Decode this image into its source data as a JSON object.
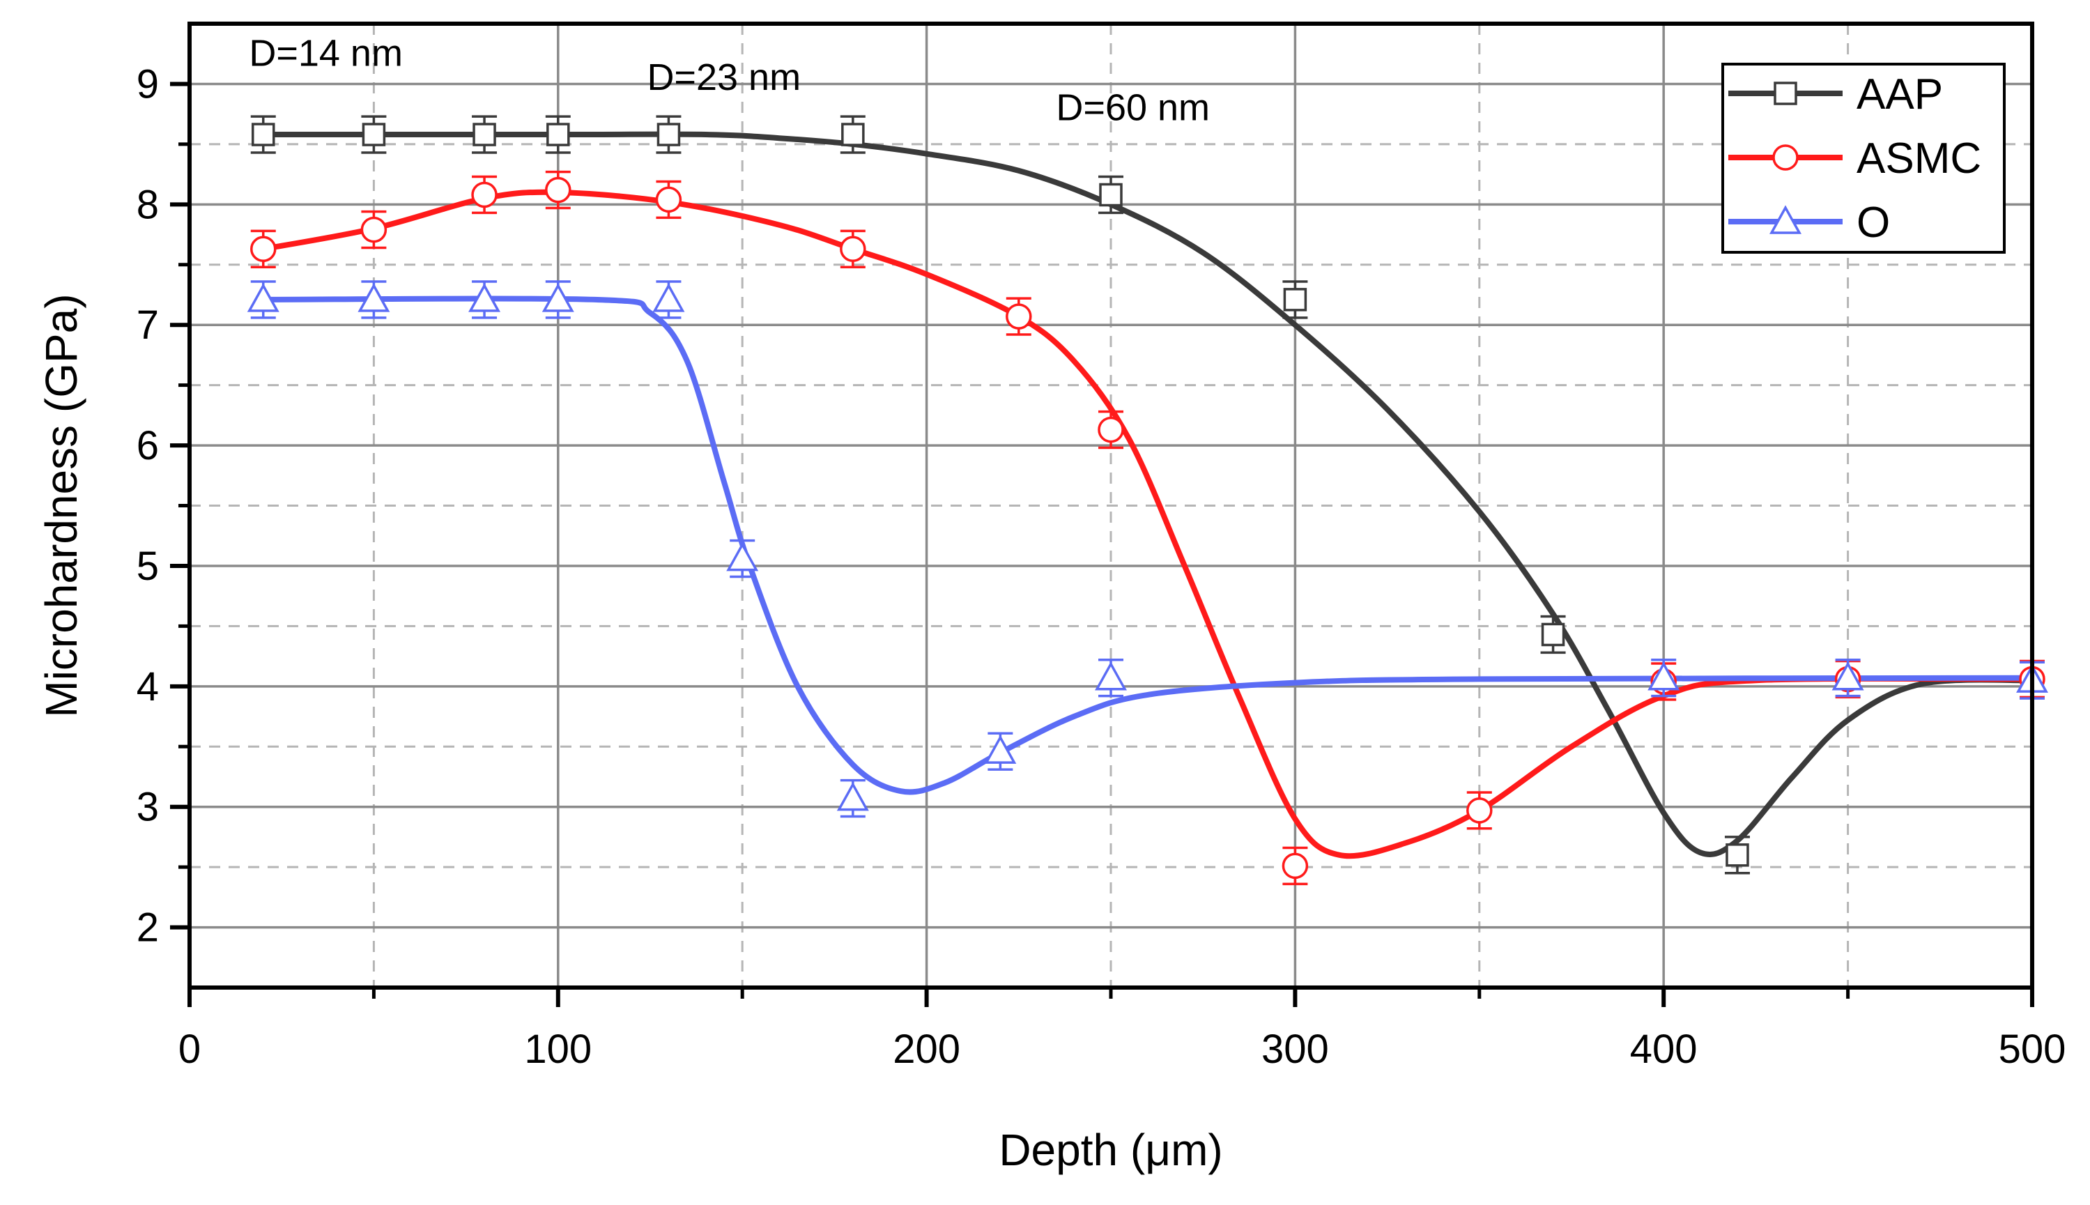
{
  "chart_data": {
    "type": "line",
    "xlabel": "Depth (μm)",
    "ylabel": "Microhardness (GPa)",
    "xlim": [
      0,
      500
    ],
    "ylim": [
      1.5,
      9.5
    ],
    "xticks": [
      0,
      100,
      200,
      300,
      400,
      500
    ],
    "xticks_minor": [
      50,
      150,
      250,
      350,
      450
    ],
    "yticks": [
      2,
      3,
      4,
      5,
      6,
      7,
      8,
      9
    ],
    "yticks_minor": [
      2.5,
      3.5,
      4.5,
      5.5,
      6.5,
      7.5,
      8.5
    ],
    "grid": true,
    "legend_position": "top-right",
    "annotations": [
      {
        "text": "D=14 nm",
        "x": 37,
        "y": 9.15
      },
      {
        "text": "D=23 nm",
        "x": 145,
        "y": 8.95
      },
      {
        "text": "D=60 nm",
        "x": 256,
        "y": 8.7
      }
    ],
    "series": [
      {
        "name": "AAP",
        "color": "#3a3a3a",
        "marker": "square",
        "points": [
          [
            20,
            8.58
          ],
          [
            50,
            8.58
          ],
          [
            80,
            8.58
          ],
          [
            100,
            8.58
          ],
          [
            130,
            8.58
          ],
          [
            180,
            8.58
          ],
          [
            250,
            8.08
          ],
          [
            300,
            7.21
          ],
          [
            370,
            4.43
          ],
          [
            420,
            2.6
          ]
        ],
        "error": [
          0.15,
          0.15,
          0.15,
          0.15,
          0.15,
          0.15,
          0.15,
          0.15,
          0.15,
          0.15
        ],
        "curve": [
          [
            20,
            8.58
          ],
          [
            100,
            8.58
          ],
          [
            140,
            8.58
          ],
          [
            160,
            8.55
          ],
          [
            180,
            8.5
          ],
          [
            200,
            8.42
          ],
          [
            225,
            8.28
          ],
          [
            250,
            8.0
          ],
          [
            275,
            7.6
          ],
          [
            300,
            7.0
          ],
          [
            325,
            6.3
          ],
          [
            350,
            5.45
          ],
          [
            370,
            4.6
          ],
          [
            385,
            3.8
          ],
          [
            400,
            2.95
          ],
          [
            410,
            2.62
          ],
          [
            420,
            2.72
          ],
          [
            435,
            3.25
          ],
          [
            450,
            3.72
          ],
          [
            470,
            4.02
          ],
          [
            500,
            4.05
          ]
        ]
      },
      {
        "name": "ASMC",
        "color": "#ff1a1a",
        "marker": "circle",
        "points": [
          [
            20,
            7.63
          ],
          [
            50,
            7.79
          ],
          [
            80,
            8.08
          ],
          [
            100,
            8.12
          ],
          [
            130,
            8.04
          ],
          [
            180,
            7.63
          ],
          [
            225,
            7.07
          ],
          [
            250,
            6.13
          ],
          [
            300,
            2.51
          ],
          [
            350,
            2.97
          ],
          [
            400,
            4.04
          ],
          [
            450,
            4.06
          ],
          [
            500,
            4.06
          ]
        ],
        "error": [
          0.15,
          0.15,
          0.15,
          0.15,
          0.15,
          0.15,
          0.15,
          0.15,
          0.15,
          0.15,
          0.15,
          0.15,
          0.15
        ],
        "curve": [
          [
            20,
            7.63
          ],
          [
            50,
            7.8
          ],
          [
            80,
            8.05
          ],
          [
            100,
            8.1
          ],
          [
            130,
            8.02
          ],
          [
            160,
            7.83
          ],
          [
            180,
            7.63
          ],
          [
            200,
            7.42
          ],
          [
            225,
            7.07
          ],
          [
            240,
            6.7
          ],
          [
            255,
            6.05
          ],
          [
            270,
            5.0
          ],
          [
            285,
            3.9
          ],
          [
            300,
            2.9
          ],
          [
            312,
            2.6
          ],
          [
            330,
            2.7
          ],
          [
            350,
            2.97
          ],
          [
            375,
            3.5
          ],
          [
            400,
            3.92
          ],
          [
            425,
            4.05
          ],
          [
            500,
            4.06
          ]
        ]
      },
      {
        "name": "O",
        "color": "#5b6cf5",
        "marker": "triangle",
        "points": [
          [
            20,
            7.21
          ],
          [
            50,
            7.21
          ],
          [
            80,
            7.21
          ],
          [
            100,
            7.21
          ],
          [
            130,
            7.21
          ],
          [
            150,
            5.06
          ],
          [
            180,
            3.07
          ],
          [
            220,
            3.46
          ],
          [
            250,
            4.07
          ],
          [
            400,
            4.07
          ],
          [
            450,
            4.07
          ],
          [
            500,
            4.05
          ]
        ],
        "error": [
          0.15,
          0.15,
          0.15,
          0.15,
          0.15,
          0.15,
          0.15,
          0.15,
          0.15,
          0.15,
          0.15,
          0.15
        ],
        "curve": [
          [
            20,
            7.21
          ],
          [
            110,
            7.21
          ],
          [
            125,
            7.1
          ],
          [
            135,
            6.7
          ],
          [
            145,
            5.7
          ],
          [
            152,
            5.0
          ],
          [
            165,
            4.0
          ],
          [
            180,
            3.35
          ],
          [
            193,
            3.13
          ],
          [
            205,
            3.2
          ],
          [
            220,
            3.45
          ],
          [
            240,
            3.75
          ],
          [
            260,
            3.93
          ],
          [
            300,
            4.03
          ],
          [
            350,
            4.06
          ],
          [
            500,
            4.07
          ]
        ]
      }
    ]
  }
}
